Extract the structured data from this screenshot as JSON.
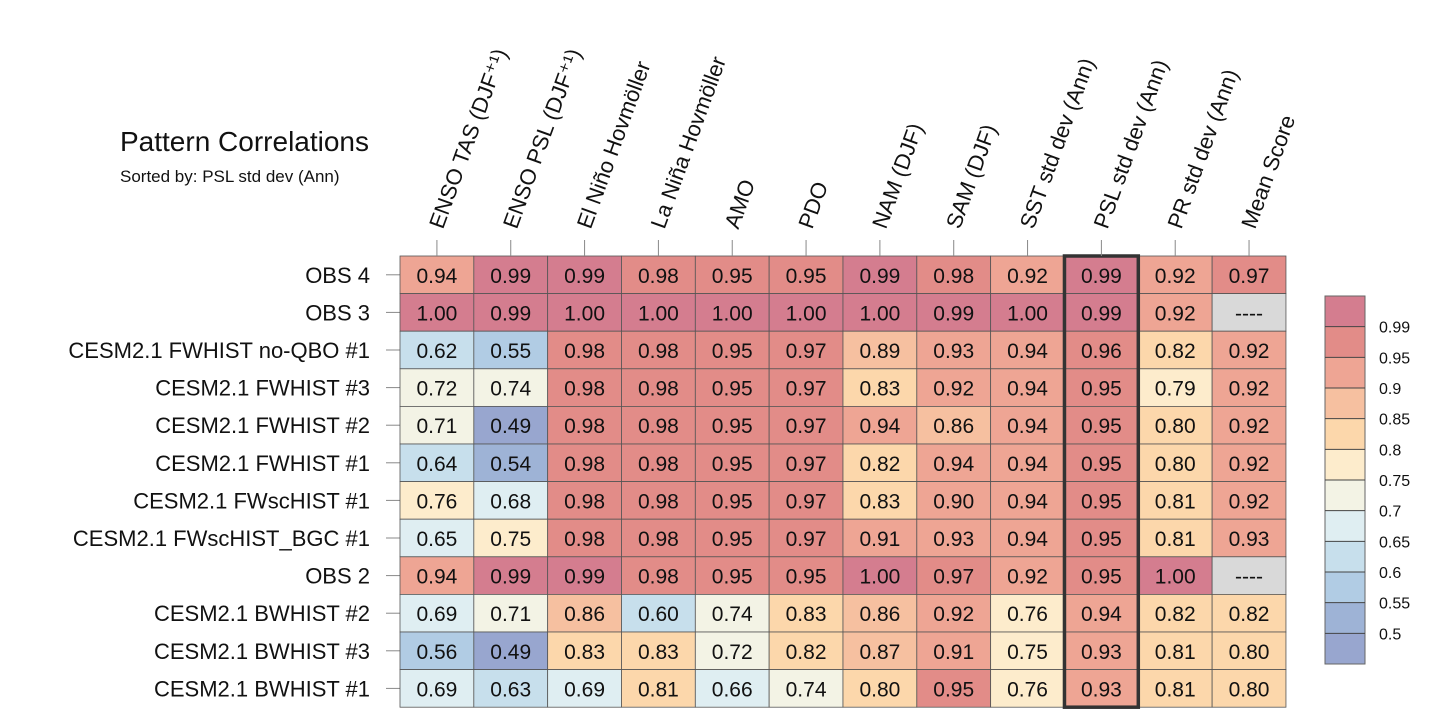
{
  "chart_data": {
    "type": "heatmap",
    "title": "Pattern Correlations",
    "subtitle": "Sorted by: PSL std dev (Ann)",
    "sort_label": "Sorted by:",
    "sorted_column": "PSL std dev (Ann)",
    "columns": [
      "ENSO TAS (DJF⁺¹)",
      "ENSO PSL (DJF⁺¹)",
      "El Niño Hovmöller",
      "La Niña Hovmöller",
      "AMO",
      "PDO",
      "NAM (DJF)",
      "SAM (DJF)",
      "SST std dev (Ann)",
      "PSL std dev (Ann)",
      "PR std dev (Ann)",
      "Mean Score"
    ],
    "rows": [
      {
        "label": "OBS 4",
        "values": [
          "0.94",
          "0.99",
          "0.99",
          "0.98",
          "0.95",
          "0.95",
          "0.99",
          "0.98",
          "0.92",
          "0.99",
          "0.92",
          "0.97"
        ]
      },
      {
        "label": "OBS 3",
        "values": [
          "1.00",
          "0.99",
          "1.00",
          "1.00",
          "1.00",
          "1.00",
          "1.00",
          "0.99",
          "1.00",
          "0.99",
          "0.92",
          "----"
        ]
      },
      {
        "label": "CESM2.1 FWHIST no-QBO #1",
        "values": [
          "0.62",
          "0.55",
          "0.98",
          "0.98",
          "0.95",
          "0.97",
          "0.89",
          "0.93",
          "0.94",
          "0.96",
          "0.82",
          "0.92"
        ]
      },
      {
        "label": "CESM2.1 FWHIST #3",
        "values": [
          "0.72",
          "0.74",
          "0.98",
          "0.98",
          "0.95",
          "0.97",
          "0.83",
          "0.92",
          "0.94",
          "0.95",
          "0.79",
          "0.92"
        ]
      },
      {
        "label": "CESM2.1 FWHIST #2",
        "values": [
          "0.71",
          "0.49",
          "0.98",
          "0.98",
          "0.95",
          "0.97",
          "0.94",
          "0.86",
          "0.94",
          "0.95",
          "0.80",
          "0.92"
        ]
      },
      {
        "label": "CESM2.1 FWHIST #1",
        "values": [
          "0.64",
          "0.54",
          "0.98",
          "0.98",
          "0.95",
          "0.97",
          "0.82",
          "0.94",
          "0.94",
          "0.95",
          "0.80",
          "0.92"
        ]
      },
      {
        "label": "CESM2.1 FWscHIST #1",
        "values": [
          "0.76",
          "0.68",
          "0.98",
          "0.98",
          "0.95",
          "0.97",
          "0.83",
          "0.90",
          "0.94",
          "0.95",
          "0.81",
          "0.92"
        ]
      },
      {
        "label": "CESM2.1 FWscHIST_BGC #1",
        "values": [
          "0.65",
          "0.75",
          "0.98",
          "0.98",
          "0.95",
          "0.97",
          "0.91",
          "0.93",
          "0.94",
          "0.95",
          "0.81",
          "0.93"
        ]
      },
      {
        "label": "OBS 2",
        "values": [
          "0.94",
          "0.99",
          "0.99",
          "0.98",
          "0.95",
          "0.95",
          "1.00",
          "0.97",
          "0.92",
          "0.95",
          "1.00",
          "----"
        ]
      },
      {
        "label": "CESM2.1 BWHIST #2",
        "values": [
          "0.69",
          "0.71",
          "0.86",
          "0.60",
          "0.74",
          "0.83",
          "0.86",
          "0.92",
          "0.76",
          "0.94",
          "0.82",
          "0.82"
        ]
      },
      {
        "label": "CESM2.1 BWHIST #3",
        "values": [
          "0.56",
          "0.49",
          "0.83",
          "0.83",
          "0.72",
          "0.82",
          "0.87",
          "0.91",
          "0.75",
          "0.93",
          "0.81",
          "0.80"
        ]
      },
      {
        "label": "CESM2.1 BWHIST #1",
        "values": [
          "0.69",
          "0.63",
          "0.69",
          "0.81",
          "0.66",
          "0.74",
          "0.80",
          "0.95",
          "0.76",
          "0.93",
          "0.81",
          "0.80"
        ]
      }
    ],
    "missing_marker": "----",
    "colorbar": {
      "levels": [
        "0.99",
        "0.95",
        "0.9",
        "0.85",
        "0.8",
        "0.75",
        "0.7",
        "0.65",
        "0.6",
        "0.55",
        "0.5"
      ],
      "level_values": [
        0.99,
        0.95,
        0.9,
        0.85,
        0.8,
        0.75,
        0.7,
        0.65,
        0.6,
        0.55,
        0.5
      ],
      "colors": [
        "#d47d8f",
        "#e28c88",
        "#eea594",
        "#f6c0a0",
        "#fcd7ab",
        "#fdeccc",
        "#f3f3e5",
        "#dfeef2",
        "#c7dfec",
        "#b1cce4",
        "#9eb3d6",
        "#98a6cf"
      ]
    },
    "missing_color": "#d9d9d9",
    "highlight_color": "#333333"
  }
}
